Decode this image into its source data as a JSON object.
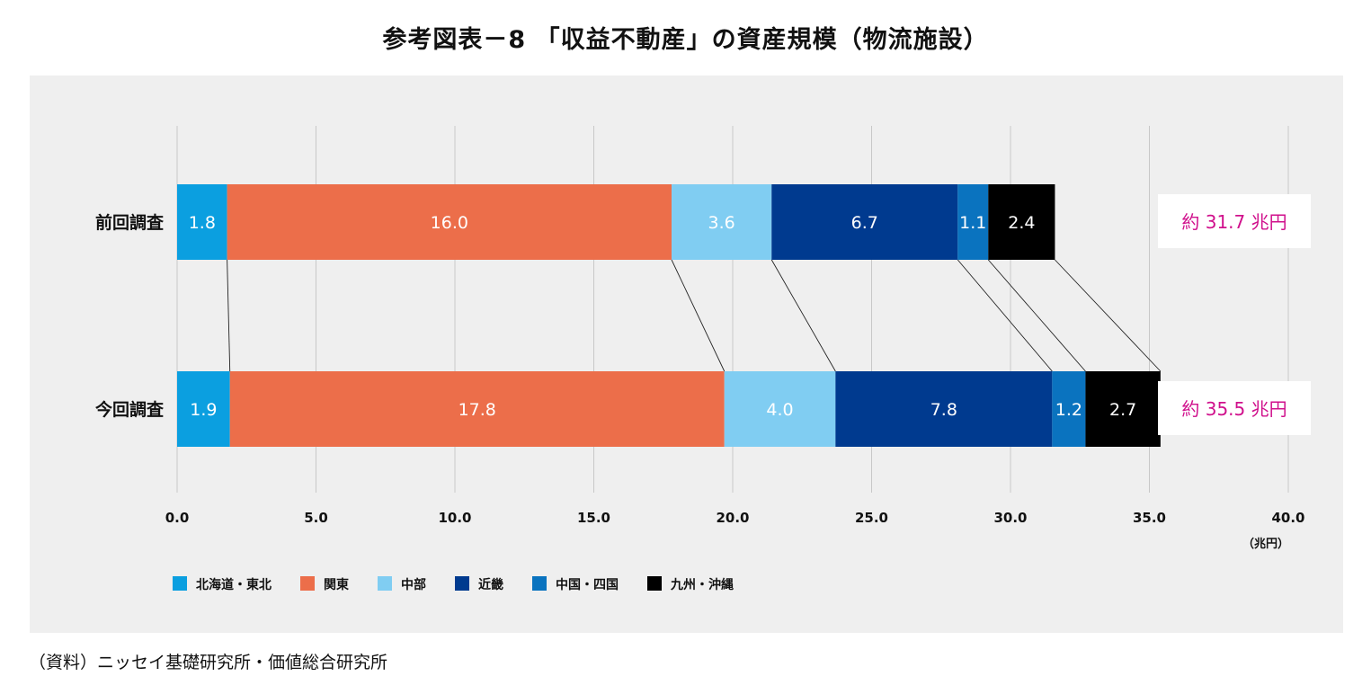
{
  "title": "参考図表－8 「収益不動産」の資産規模（物流施設）",
  "source": "（資料）ニッセイ基礎研究所・価値総合研究所",
  "chart_data": {
    "type": "bar",
    "orientation": "horizontal",
    "stacked": true,
    "categories": [
      "前回調査",
      "今回調査"
    ],
    "series": [
      {
        "name": "北海道・東北",
        "values": [
          1.8,
          1.9
        ],
        "color": "#0b9fe0",
        "label_color": "#ffffff"
      },
      {
        "name": "関東",
        "values": [
          16.0,
          17.8
        ],
        "color": "#ec6e4a",
        "label_color": "#ffffff"
      },
      {
        "name": "中部",
        "values": [
          3.6,
          4.0
        ],
        "color": "#80cdf2",
        "label_color": "#ffffff"
      },
      {
        "name": "近畿",
        "values": [
          6.7,
          7.8
        ],
        "color": "#003a8f",
        "label_color": "#ffffff"
      },
      {
        "name": "中国・四国",
        "values": [
          1.1,
          1.2
        ],
        "color": "#0a73bf",
        "label_color": "#ffffff"
      },
      {
        "name": "九州・沖縄",
        "values": [
          2.4,
          2.7
        ],
        "color": "#000000",
        "label_color": "#ffffff"
      }
    ],
    "totals": [
      "約 31.7 兆円",
      "約 35.5 兆円"
    ],
    "total_color": "#d0108c",
    "xlim": [
      0,
      40
    ],
    "xticks": [
      "0.0",
      "5.0",
      "10.0",
      "15.0",
      "20.0",
      "25.0",
      "30.0",
      "35.0",
      "40.0"
    ],
    "xunit": "（兆円）",
    "grid": true,
    "legend_position": "bottom-left",
    "connector_lines": true
  }
}
